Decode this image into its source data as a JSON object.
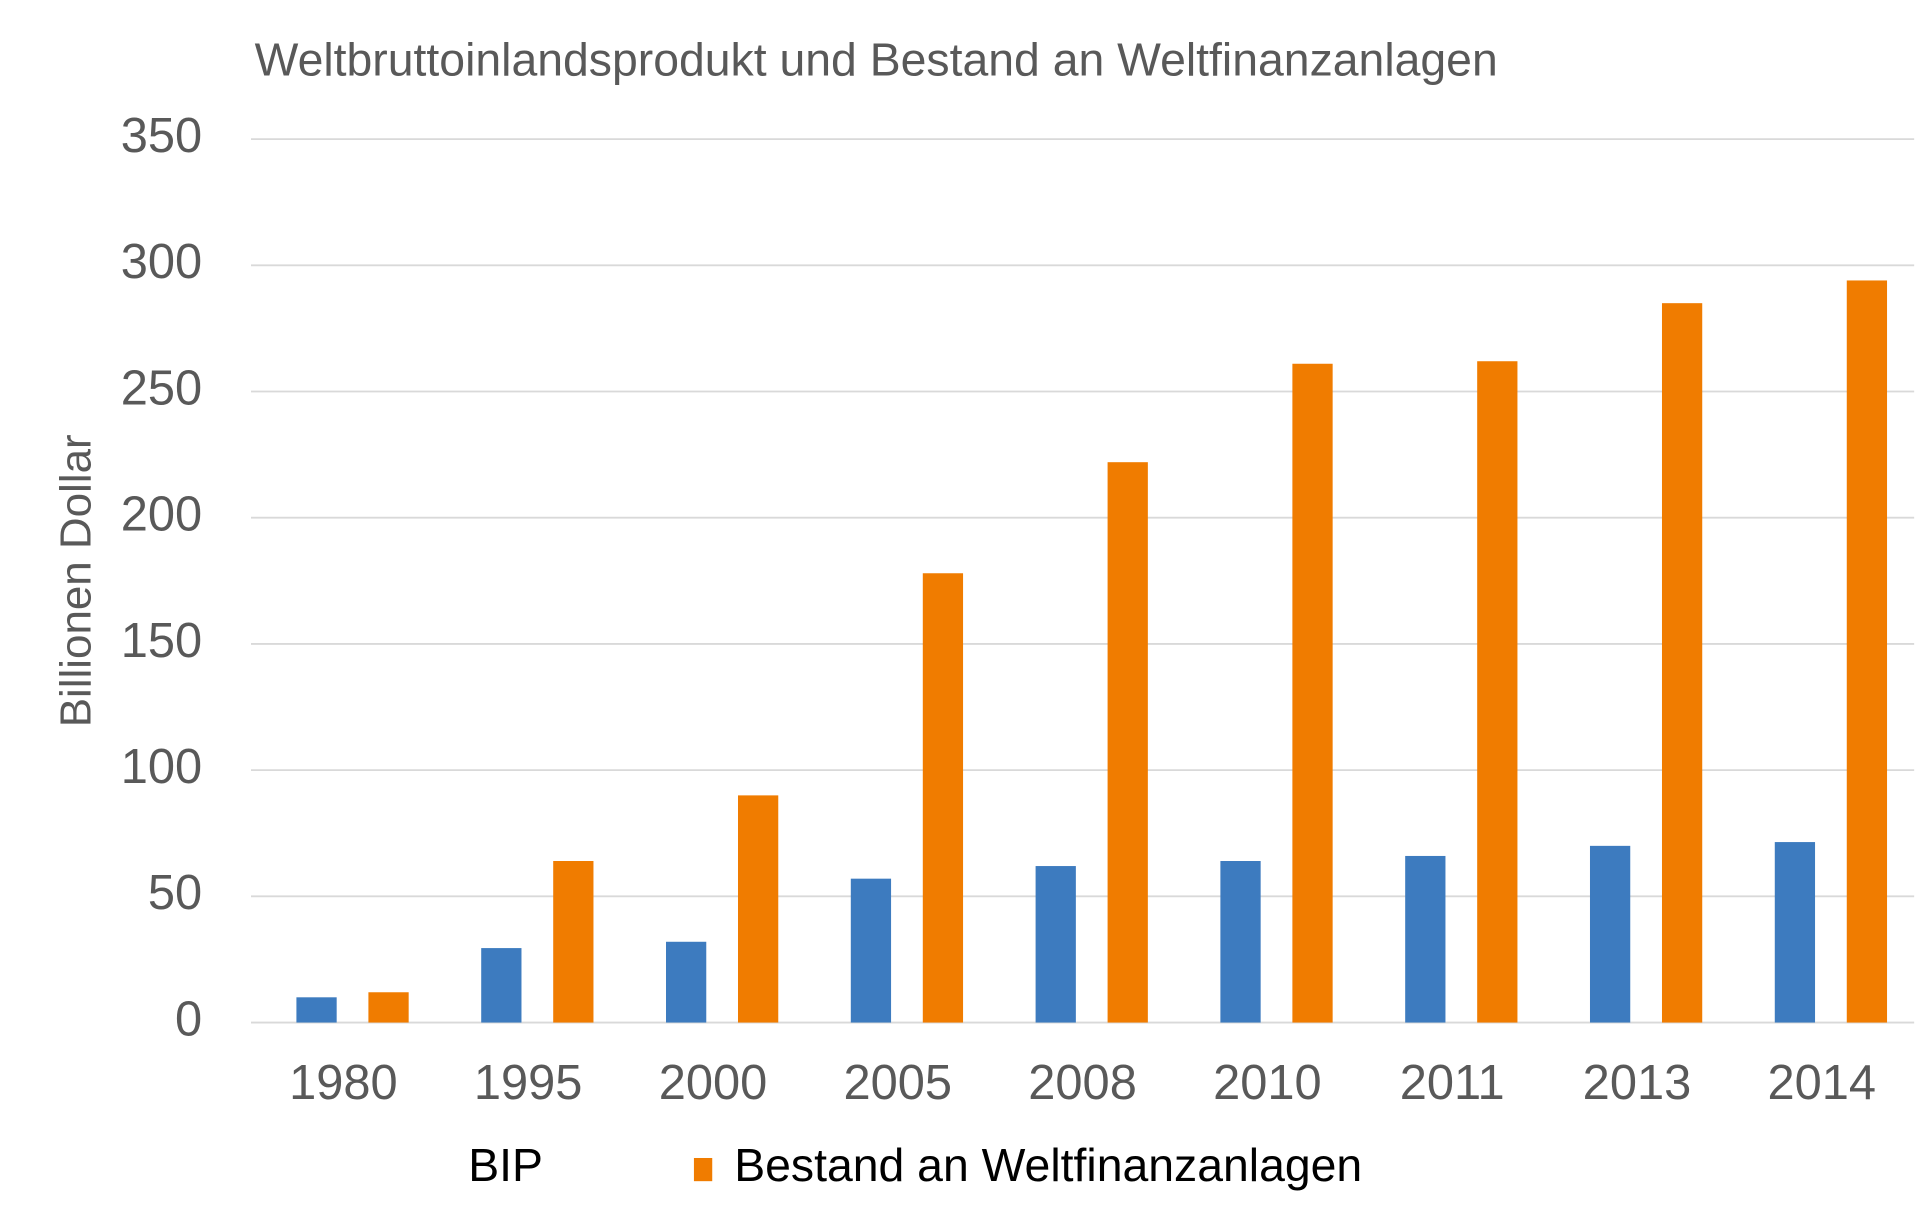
{
  "chart_data": {
    "type": "bar",
    "title": "Weltbruttoinlandsprodukt und Bestand an Weltfinanzanlagen",
    "y_label": "Billionen Dollar",
    "categories": [
      "1980",
      "1995",
      "2000",
      "2005",
      "2008",
      "2010",
      "2011",
      "2013",
      "2014"
    ],
    "series": [
      {
        "name": "BIP",
        "color": "#3d7bbf",
        "values": [
          10,
          29.5,
          32,
          57,
          62,
          64,
          66,
          70,
          71.5
        ]
      },
      {
        "name": "Bestand an Weltfinanzanlagen",
        "color": "#f07c00",
        "values": [
          12,
          64,
          90,
          178,
          222,
          261,
          262,
          285,
          294
        ]
      }
    ],
    "ylim": [
      0,
      350
    ],
    "yticks": [
      0,
      50,
      100,
      150,
      200,
      250,
      300,
      350
    ],
    "grid": true
  }
}
